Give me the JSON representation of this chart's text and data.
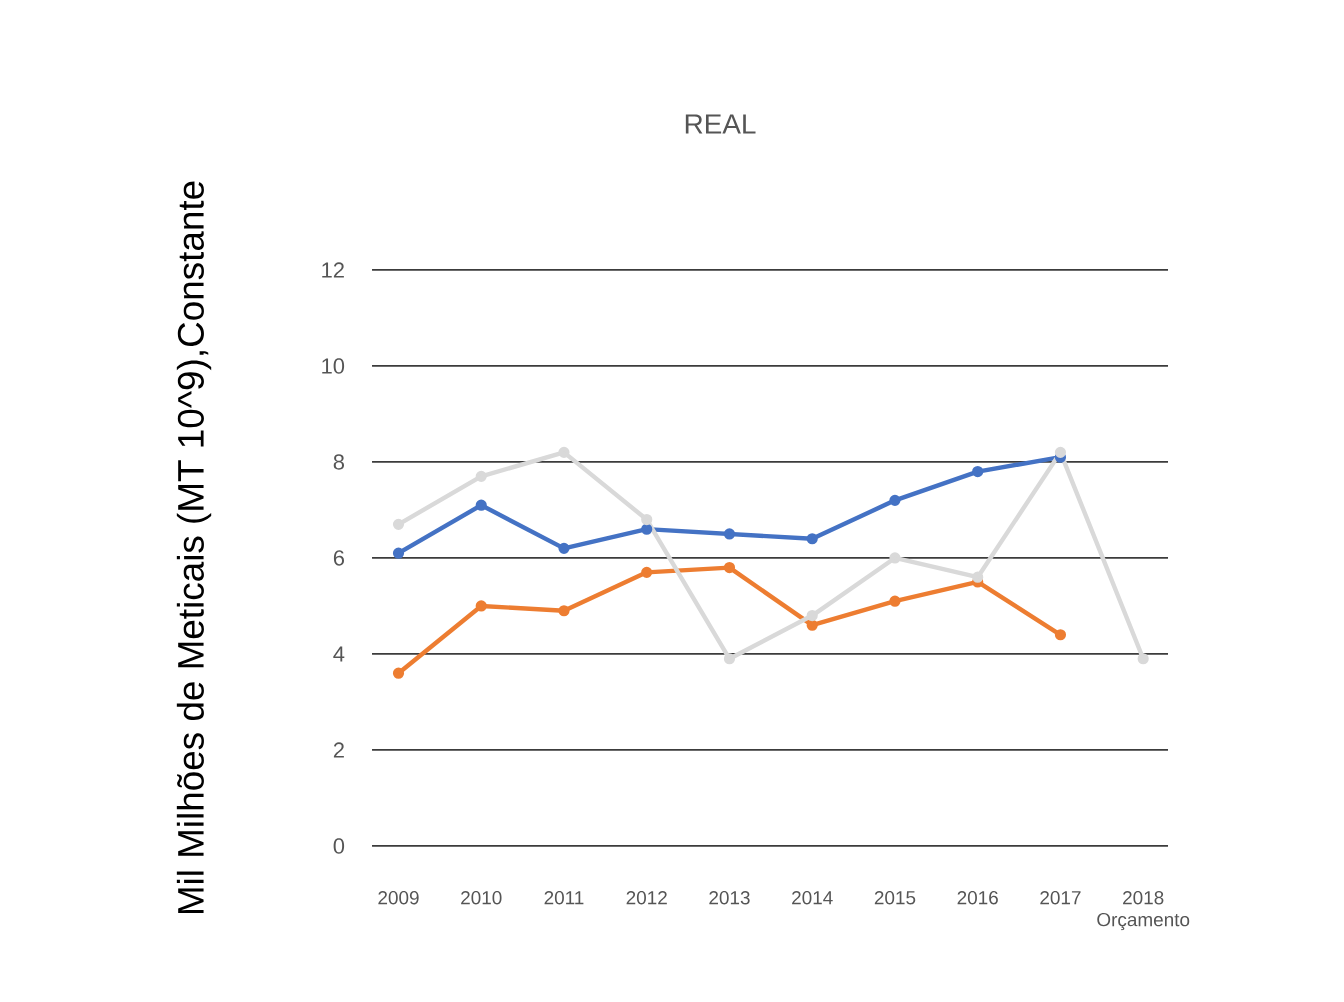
{
  "chart_data": {
    "type": "line",
    "title": "REAL",
    "ylabel": "Mil Milhões de Meticais (MT 10^9),Constante",
    "categories": [
      "2009",
      "2010",
      "2011",
      "2012",
      "2013",
      "2014",
      "2015",
      "2016",
      "2017",
      "2018 Orçamento"
    ],
    "series": [
      {
        "color": "#4472c4",
        "values": [
          6.1,
          7.1,
          6.2,
          6.6,
          6.5,
          6.4,
          7.2,
          7.8,
          8.1,
          null
        ]
      },
      {
        "color": "#ed7d31",
        "values": [
          3.6,
          5.0,
          4.9,
          5.7,
          5.8,
          4.6,
          5.1,
          5.5,
          4.4,
          null
        ]
      },
      {
        "color": "#d9d9d9",
        "values": [
          6.7,
          7.7,
          8.2,
          6.8,
          3.9,
          4.8,
          6.0,
          5.6,
          8.2,
          3.9
        ]
      }
    ],
    "ylim": [
      0,
      12
    ],
    "yticks": [
      0,
      2,
      4,
      6,
      8,
      10,
      12
    ],
    "grid": "y",
    "marker": "circle",
    "line_style": "solid"
  }
}
